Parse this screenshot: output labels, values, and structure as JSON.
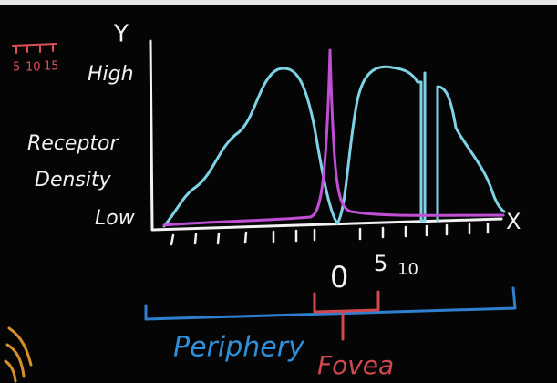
{
  "axes": {
    "y_label": "Y",
    "x_label": "X",
    "high": "High",
    "low": "Low",
    "y_title": [
      "Receptor",
      "Density"
    ]
  },
  "x_labels": [
    "0",
    "5",
    "10"
  ],
  "corner_ticks": [
    "5",
    "10",
    "15"
  ],
  "regions": {
    "periphery": "Periphery",
    "fovea": "Fovea"
  }
}
